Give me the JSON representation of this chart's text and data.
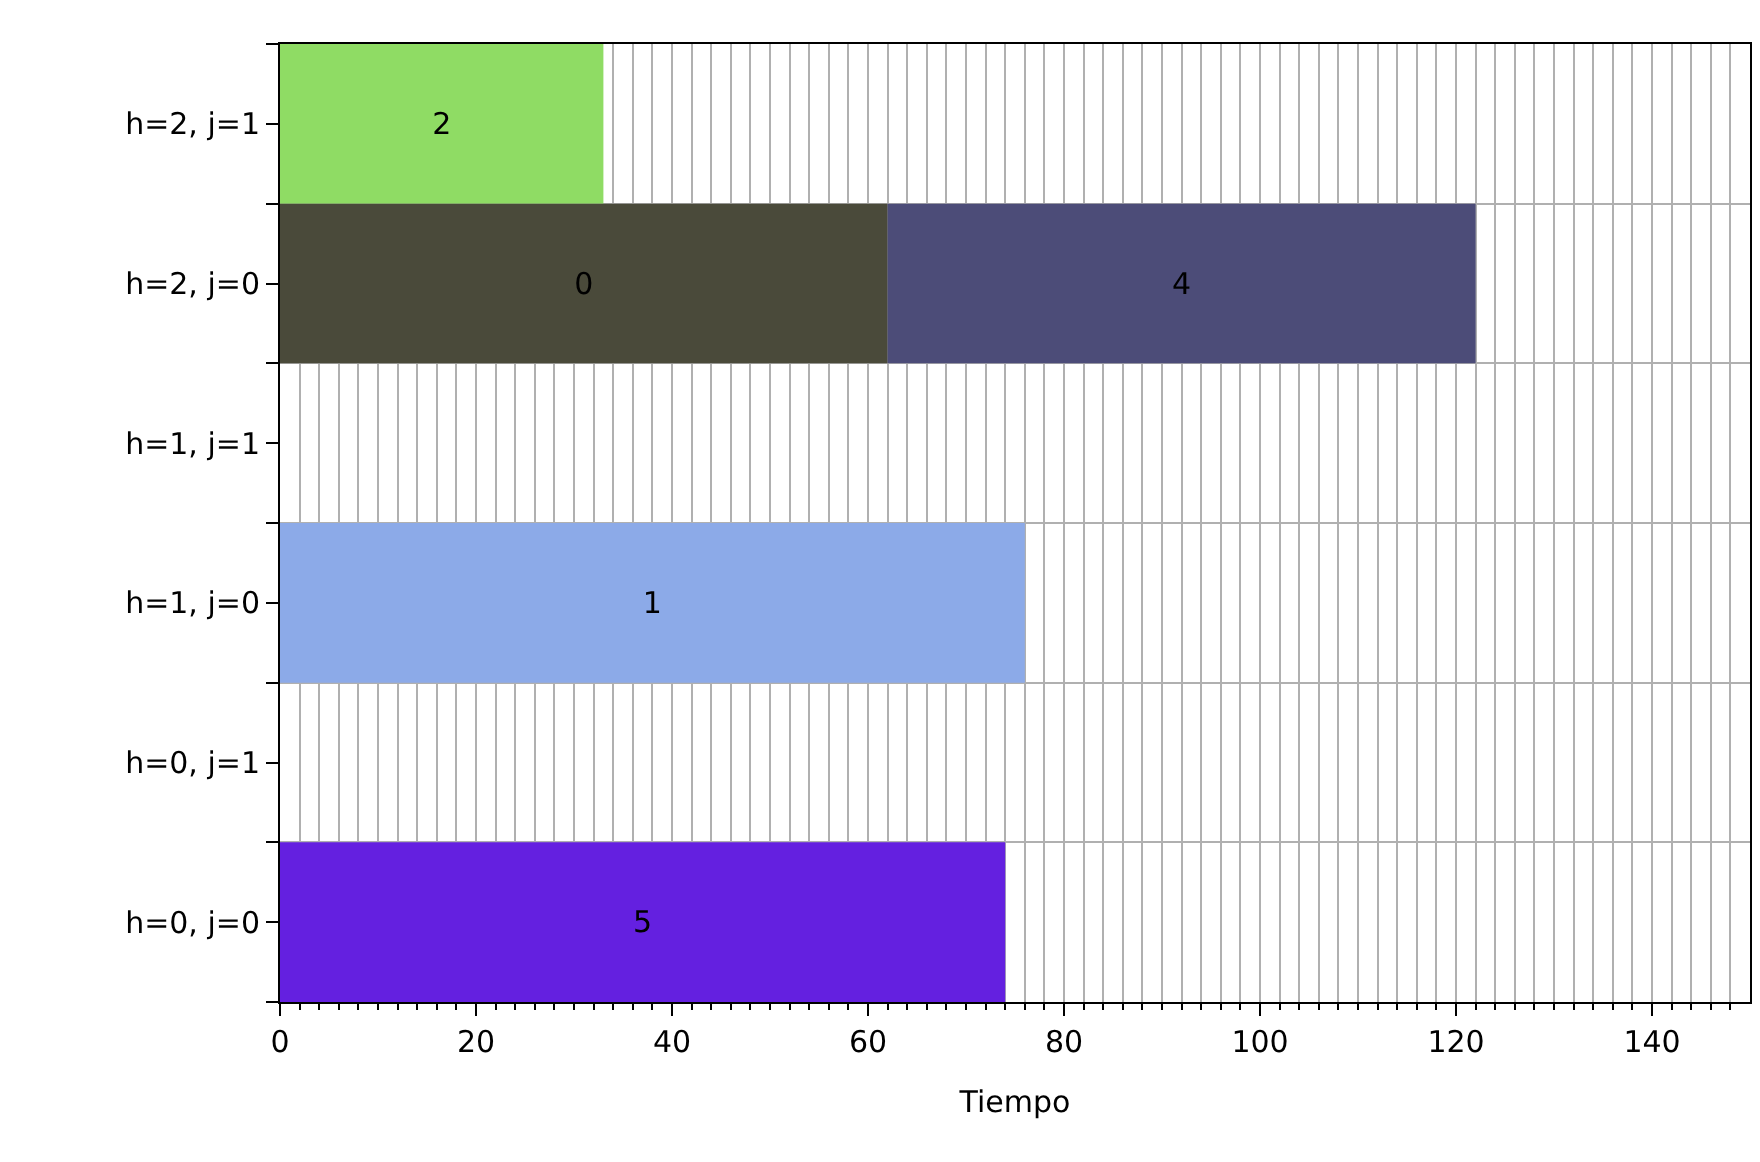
{
  "chart_data": {
    "type": "bar",
    "orientation": "horizontal",
    "xlabel": "Tiempo",
    "categories": [
      "h=2, j=1",
      "h=2, j=0",
      "h=1, j=1",
      "h=1, j=0",
      "h=0, j=1",
      "h=0, j=0"
    ],
    "series": [
      {
        "name": "2",
        "color": "#8fdc64",
        "values": [
          33,
          null,
          null,
          null,
          null,
          null
        ],
        "base": [
          0,
          null,
          null,
          null,
          null,
          null
        ]
      },
      {
        "name": "0",
        "color": "#4a4a3a",
        "values": [
          null,
          62,
          null,
          null,
          null,
          null
        ],
        "base": [
          null,
          0,
          null,
          null,
          null,
          null
        ]
      },
      {
        "name": "4",
        "color": "#4c4c78",
        "values": [
          null,
          60,
          null,
          null,
          null,
          null
        ],
        "base": [
          null,
          62,
          null,
          null,
          null,
          null
        ]
      },
      {
        "name": "1",
        "color": "#8caae8",
        "values": [
          null,
          null,
          null,
          76,
          null,
          null
        ],
        "base": [
          null,
          null,
          null,
          0,
          null,
          null
        ]
      },
      {
        "name": "5",
        "color": "#6420e0",
        "values": [
          null,
          null,
          null,
          null,
          null,
          74
        ],
        "base": [
          null,
          null,
          null,
          null,
          null,
          0
        ]
      }
    ],
    "xlim": [
      0,
      150
    ],
    "xticks": [
      0,
      {
        "value": 2,
        "label": null
      },
      {
        "value": 4,
        "label": null
      },
      {
        "value": 6,
        "label": null
      },
      {
        "value": 8,
        "label": null
      },
      {
        "value": 10,
        "label": null
      },
      {
        "value": 12,
        "label": null
      },
      {
        "value": 14,
        "label": null
      },
      {
        "value": 16,
        "label": null
      },
      {
        "value": 18,
        "label": null
      },
      20,
      {
        "value": 22,
        "label": null
      },
      {
        "value": 24,
        "label": null
      },
      {
        "value": 26,
        "label": null
      },
      {
        "value": 28,
        "label": null
      },
      {
        "value": 30,
        "label": null
      },
      {
        "value": 32,
        "label": null
      },
      {
        "value": 34,
        "label": null
      },
      {
        "value": 36,
        "label": null
      },
      {
        "value": 38,
        "label": null
      },
      40,
      {
        "value": 42,
        "label": null
      },
      {
        "value": 44,
        "label": null
      },
      {
        "value": 46,
        "label": null
      },
      {
        "value": 48,
        "label": null
      },
      {
        "value": 50,
        "label": null
      },
      {
        "value": 52,
        "label": null
      },
      {
        "value": 54,
        "label": null
      },
      {
        "value": 56,
        "label": null
      },
      {
        "value": 58,
        "label": null
      },
      60,
      {
        "value": 62,
        "label": null
      },
      {
        "value": 64,
        "label": null
      },
      {
        "value": 66,
        "label": null
      },
      {
        "value": 68,
        "label": null
      },
      {
        "value": 70,
        "label": null
      },
      {
        "value": 72,
        "label": null
      },
      {
        "value": 74,
        "label": null
      },
      {
        "value": 76,
        "label": null
      },
      {
        "value": 78,
        "label": null
      },
      80,
      {
        "value": 82,
        "label": null
      },
      {
        "value": 84,
        "label": null
      },
      {
        "value": 86,
        "label": null
      },
      {
        "value": 88,
        "label": null
      },
      {
        "value": 90,
        "label": null
      },
      {
        "value": 92,
        "label": null
      },
      {
        "value": 94,
        "label": null
      },
      {
        "value": 96,
        "label": null
      },
      {
        "value": 98,
        "label": null
      },
      100,
      {
        "value": 102,
        "label": null
      },
      {
        "value": 104,
        "label": null
      },
      {
        "value": 106,
        "label": null
      },
      {
        "value": 108,
        "label": null
      },
      {
        "value": 110,
        "label": null
      },
      {
        "value": 112,
        "label": null
      },
      {
        "value": 114,
        "label": null
      },
      {
        "value": 116,
        "label": null
      },
      {
        "value": 118,
        "label": null
      },
      120,
      {
        "value": 122,
        "label": null
      },
      {
        "value": 124,
        "label": null
      },
      {
        "value": 126,
        "label": null
      },
      {
        "value": 128,
        "label": null
      },
      {
        "value": 130,
        "label": null
      },
      {
        "value": 132,
        "label": null
      },
      {
        "value": 134,
        "label": null
      },
      {
        "value": 136,
        "label": null
      },
      {
        "value": 138,
        "label": null
      },
      140,
      {
        "value": 142,
        "label": null
      },
      {
        "value": 144,
        "label": null
      },
      {
        "value": 146,
        "label": null
      },
      {
        "value": 148,
        "label": null
      }
    ],
    "grid": true
  }
}
